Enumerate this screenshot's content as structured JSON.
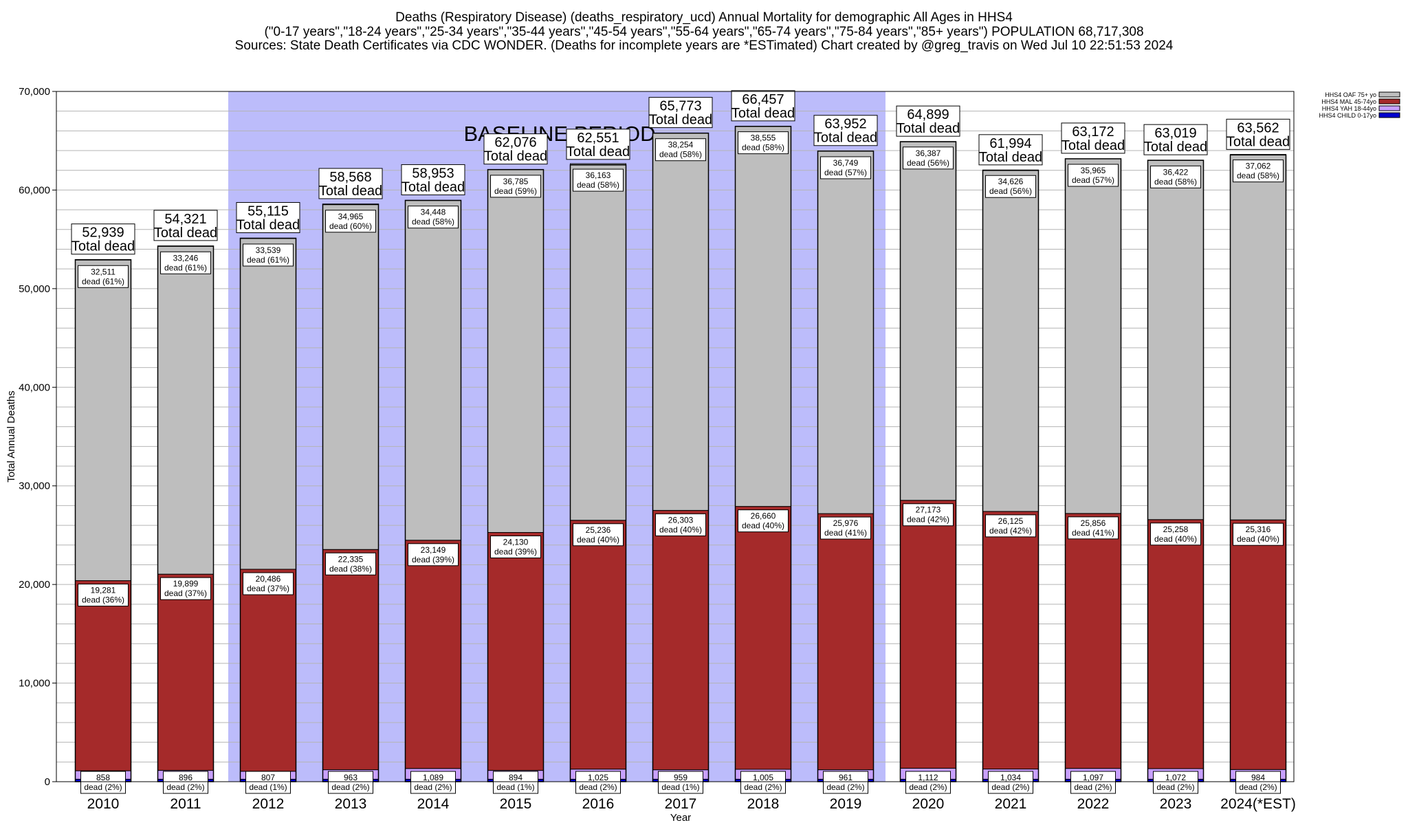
{
  "title_lines": [
    "Deaths (Respiratory Disease) (deaths_respiratory_ucd) Annual Mortality for demographic All Ages in HHS4",
    "(\"0-17 years\",\"18-24 years\",\"25-34 years\",\"35-44 years\",\"45-54 years\",\"55-64 years\",\"65-74 years\",\"75-84 years\",\"85+ years\") POPULATION 68,717,308",
    "Sources: State Death Certificates via CDC WONDER. (Deaths for incomplete years are *ESTimated)                  Chart created by @greg_travis on Wed Jul 10 22:51:53 2024"
  ],
  "colors": {
    "oaf": "#bebebe",
    "mal": "#a52a2a",
    "yah": "#c8a0ff",
    "child": "#0000cd",
    "baseline_band": "#bcbcfb"
  },
  "chart_data": {
    "type": "bar",
    "stacked": true,
    "title": "Deaths (Respiratory Disease) (deaths_respiratory_ucd) Annual Mortality for demographic All Ages in HHS4",
    "xlabel": "Year",
    "ylabel": "Total Annual Deaths",
    "ylim": [
      0,
      70000
    ],
    "yticks": [
      "0",
      "10,000",
      "20,000",
      "30,000",
      "40,000",
      "50,000",
      "60,000",
      "70,000"
    ],
    "grid": true,
    "legend_position": "top-right",
    "categories": [
      "2010",
      "2011",
      "2012",
      "2013",
      "2014",
      "2015",
      "2016",
      "2017",
      "2018",
      "2019",
      "2020",
      "2021",
      "2022",
      "2023",
      "2024(*EST)"
    ],
    "baseline_period": {
      "label": "BASELINE PERIOD",
      "start": "2012",
      "end": "2019"
    },
    "total_suffix": "Total dead",
    "totals": [
      52939,
      54321,
      55115,
      58568,
      58953,
      62076,
      62551,
      65773,
      66457,
      63952,
      64899,
      61994,
      63172,
      63019,
      63562
    ],
    "total_labels": [
      "52,939",
      "54,321",
      "55,115",
      "58,568",
      "58,953",
      "62,076",
      "62,551",
      "65,773",
      "66,457",
      "63,952",
      "64,899",
      "61,994",
      "63,172",
      "63,019",
      "63,562"
    ],
    "series": [
      {
        "name": "HHS4 CHILD 0-17yo",
        "key": "child",
        "values": [
          250,
          250,
          250,
          250,
          250,
          250,
          250,
          250,
          250,
          250,
          250,
          250,
          250,
          250,
          250
        ]
      },
      {
        "name": "HHS4 YAH 18-44yo",
        "key": "yah",
        "values": [
          858,
          896,
          807,
          963,
          1089,
          894,
          1025,
          959,
          1005,
          961,
          1112,
          1034,
          1097,
          1072,
          984
        ],
        "labels": [
          "858",
          "896",
          "807",
          "963",
          "1,089",
          "894",
          "1,025",
          "959",
          "1,005",
          "961",
          "1,112",
          "1,034",
          "1,097",
          "1,072",
          "984"
        ],
        "pcts": [
          "dead (2%)",
          "dead (2%)",
          "dead (1%)",
          "dead (2%)",
          "dead (2%)",
          "dead (1%)",
          "dead (2%)",
          "dead (1%)",
          "dead (2%)",
          "dead (2%)",
          "dead (2%)",
          "dead (2%)",
          "dead (2%)",
          "dead (2%)",
          "dead (2%)"
        ]
      },
      {
        "name": "HHS4 MAL 45-74yo",
        "key": "mal",
        "values": [
          19281,
          19899,
          20486,
          22335,
          23149,
          24130,
          25236,
          26303,
          26660,
          25976,
          27173,
          26125,
          25856,
          25258,
          25316
        ],
        "labels": [
          "19,281",
          "19,899",
          "20,486",
          "22,335",
          "23,149",
          "24,130",
          "25,236",
          "26,303",
          "26,660",
          "25,976",
          "27,173",
          "26,125",
          "25,856",
          "25,258",
          "25,316"
        ],
        "pcts": [
          "dead (36%)",
          "dead (37%)",
          "dead (37%)",
          "dead (38%)",
          "dead (39%)",
          "dead (39%)",
          "dead (40%)",
          "dead (40%)",
          "dead (40%)",
          "dead (41%)",
          "dead (42%)",
          "dead (42%)",
          "dead (41%)",
          "dead (40%)",
          "dead (40%)"
        ]
      },
      {
        "name": "HHS4 OAF 75+ yo",
        "key": "oaf",
        "values": [
          32511,
          33246,
          33539,
          34965,
          34448,
          36785,
          36163,
          38254,
          38555,
          36749,
          36387,
          34626,
          35965,
          36422,
          37062
        ],
        "labels": [
          "32,511",
          "33,246",
          "33,539",
          "34,965",
          "34,448",
          "36,785",
          "36,163",
          "38,254",
          "38,555",
          "36,749",
          "36,387",
          "34,626",
          "35,965",
          "36,422",
          "37,062"
        ],
        "pcts": [
          "dead (61%)",
          "dead (61%)",
          "dead (61%)",
          "dead (60%)",
          "dead (58%)",
          "dead (59%)",
          "dead (58%)",
          "dead (58%)",
          "dead (58%)",
          "dead (57%)",
          "dead (56%)",
          "dead (56%)",
          "dead (57%)",
          "dead (58%)",
          "dead (58%)"
        ]
      }
    ],
    "legend_order": [
      "oaf",
      "mal",
      "yah",
      "child"
    ]
  }
}
